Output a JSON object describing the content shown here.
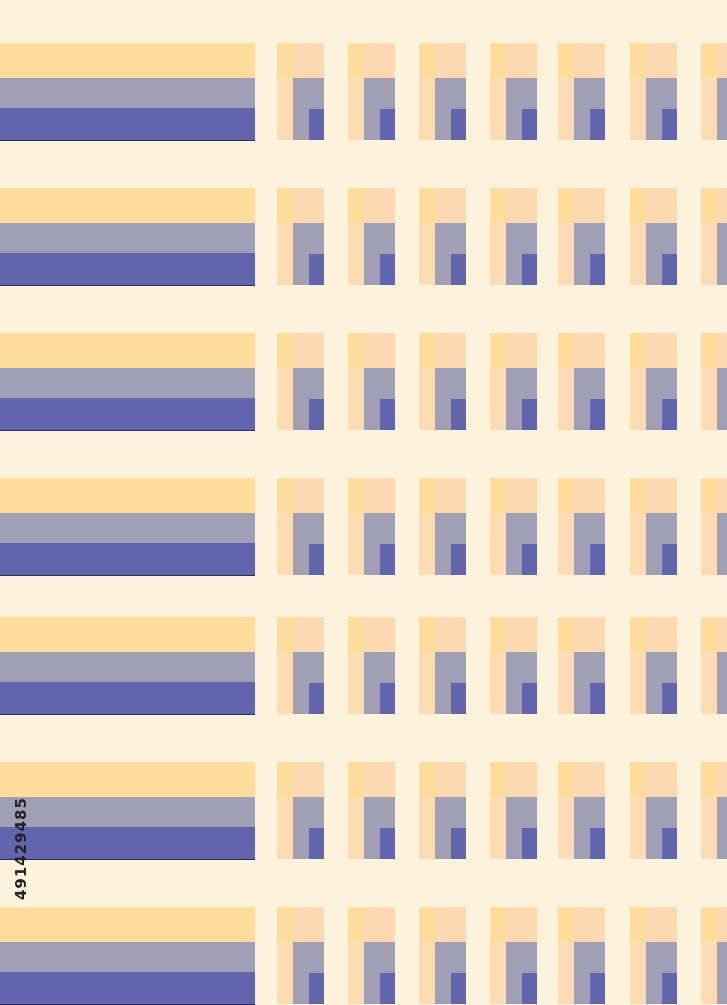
{
  "pattern": {
    "rows": 7,
    "tiles_per_row": 7,
    "colors": {
      "background": "#fdf2dc",
      "yellow": "#fedc9c",
      "peach": "#fcd9b0",
      "grey": "#a09fb3",
      "blue": "#6265ad"
    }
  },
  "watermark_id": "491429485"
}
